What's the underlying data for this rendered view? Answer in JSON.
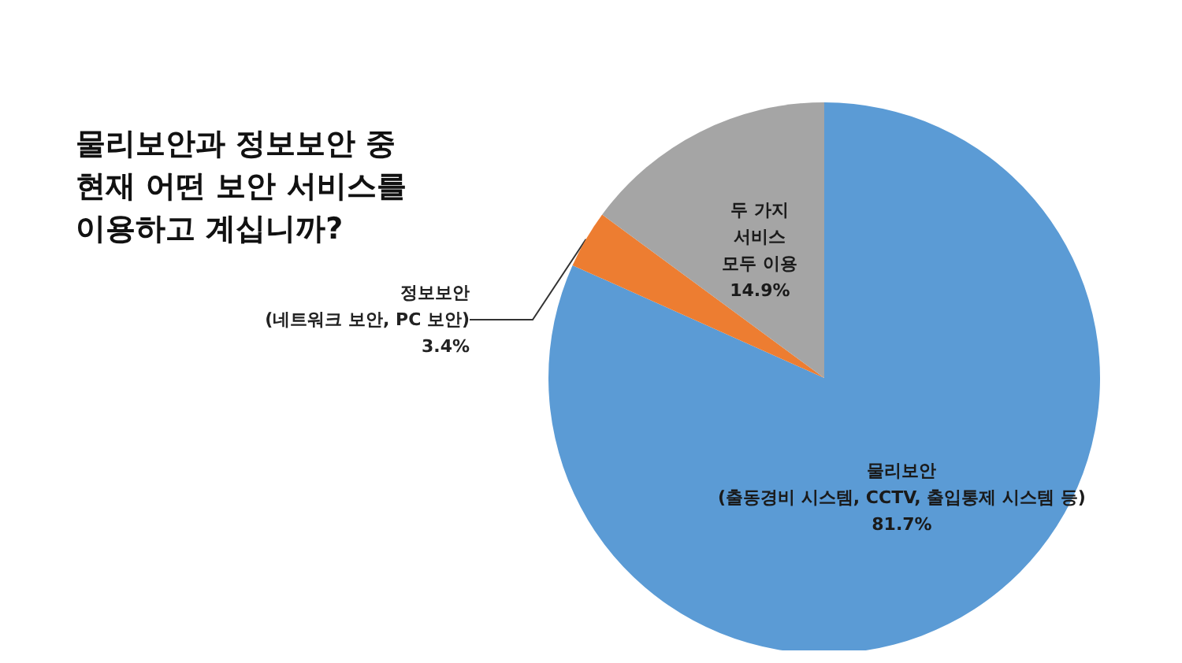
{
  "chart_data": {
    "type": "pie",
    "title": "물리보안과 정보보안 중\n현재 어떤 보안 서비스를\n이용하고 계십니까?",
    "categories": [
      "물리보안\n(출동경비 시스템, CCTV, 출입통제 시스템 등)",
      "정보보안\n(네트워크 보안, PC 보안)",
      "두 가지\n서비스\n모두 이용"
    ],
    "values": [
      81.7,
      3.4,
      14.9
    ],
    "colors": [
      "#5b9bd5",
      "#ed7d31",
      "#a5a5a5"
    ],
    "value_labels": [
      "81.7%",
      "3.4%",
      "14.9%"
    ],
    "legend": false
  }
}
